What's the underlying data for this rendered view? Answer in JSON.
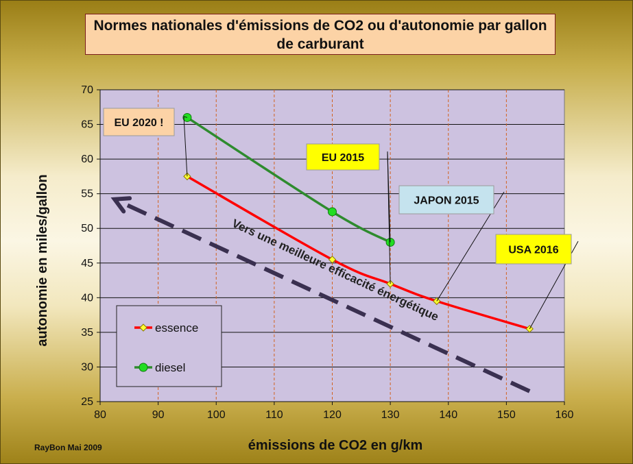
{
  "title": "Normes nationales d'émissions de CO2 ou d'autonomie par gallon de carburant",
  "credit": "RayBon  Mai 2009",
  "arrow_label": "Vers une meilleure efficacité énergétique",
  "chart_data": {
    "type": "line",
    "title": "Normes nationales d'émissions de CO2 ou d'autonomie par gallon de carburant",
    "xlabel": "émissions de CO2 en g/km",
    "ylabel": "autonomie en miles/gallon",
    "xlim": [
      80,
      160
    ],
    "ylim": [
      25,
      70
    ],
    "x_ticks": [
      80,
      90,
      100,
      110,
      120,
      130,
      140,
      150,
      160
    ],
    "y_ticks": [
      25,
      30,
      35,
      40,
      45,
      50,
      55,
      60,
      65,
      70
    ],
    "grid": "horizontal solid, vertical dashed",
    "legend_position": "bottom-left",
    "series": [
      {
        "name": "essence",
        "color": "#ff0000",
        "marker": "yellow-diamond",
        "points": [
          {
            "x": 95,
            "y": 57.5
          },
          {
            "x": 120,
            "y": 45.5
          },
          {
            "x": 130,
            "y": 42
          },
          {
            "x": 138,
            "y": 39.5
          },
          {
            "x": 154,
            "y": 35.5
          }
        ]
      },
      {
        "name": "diesel",
        "color": "#2e8b2e",
        "marker": "green-circle",
        "points": [
          {
            "x": 95,
            "y": 66
          },
          {
            "x": 120,
            "y": 52.4
          },
          {
            "x": 130,
            "y": 48
          }
        ]
      }
    ],
    "annotations": [
      {
        "label": "EU 2020 !",
        "background": "#fcd3a6",
        "points_to": [
          {
            "x": 95,
            "y": 66
          },
          {
            "x": 95,
            "y": 57.5
          }
        ]
      },
      {
        "label": "EU 2015",
        "background": "#ffff00",
        "points_to": [
          {
            "x": 130,
            "y": 48
          },
          {
            "x": 130,
            "y": 42
          }
        ]
      },
      {
        "label": "JAPON 2015",
        "background": "#c5e3ee",
        "points_to": [
          {
            "x": 138,
            "y": 39.5
          }
        ]
      },
      {
        "label": "USA 2016",
        "background": "#ffff00",
        "points_to": [
          {
            "x": 154,
            "y": 35.5
          }
        ]
      }
    ]
  }
}
